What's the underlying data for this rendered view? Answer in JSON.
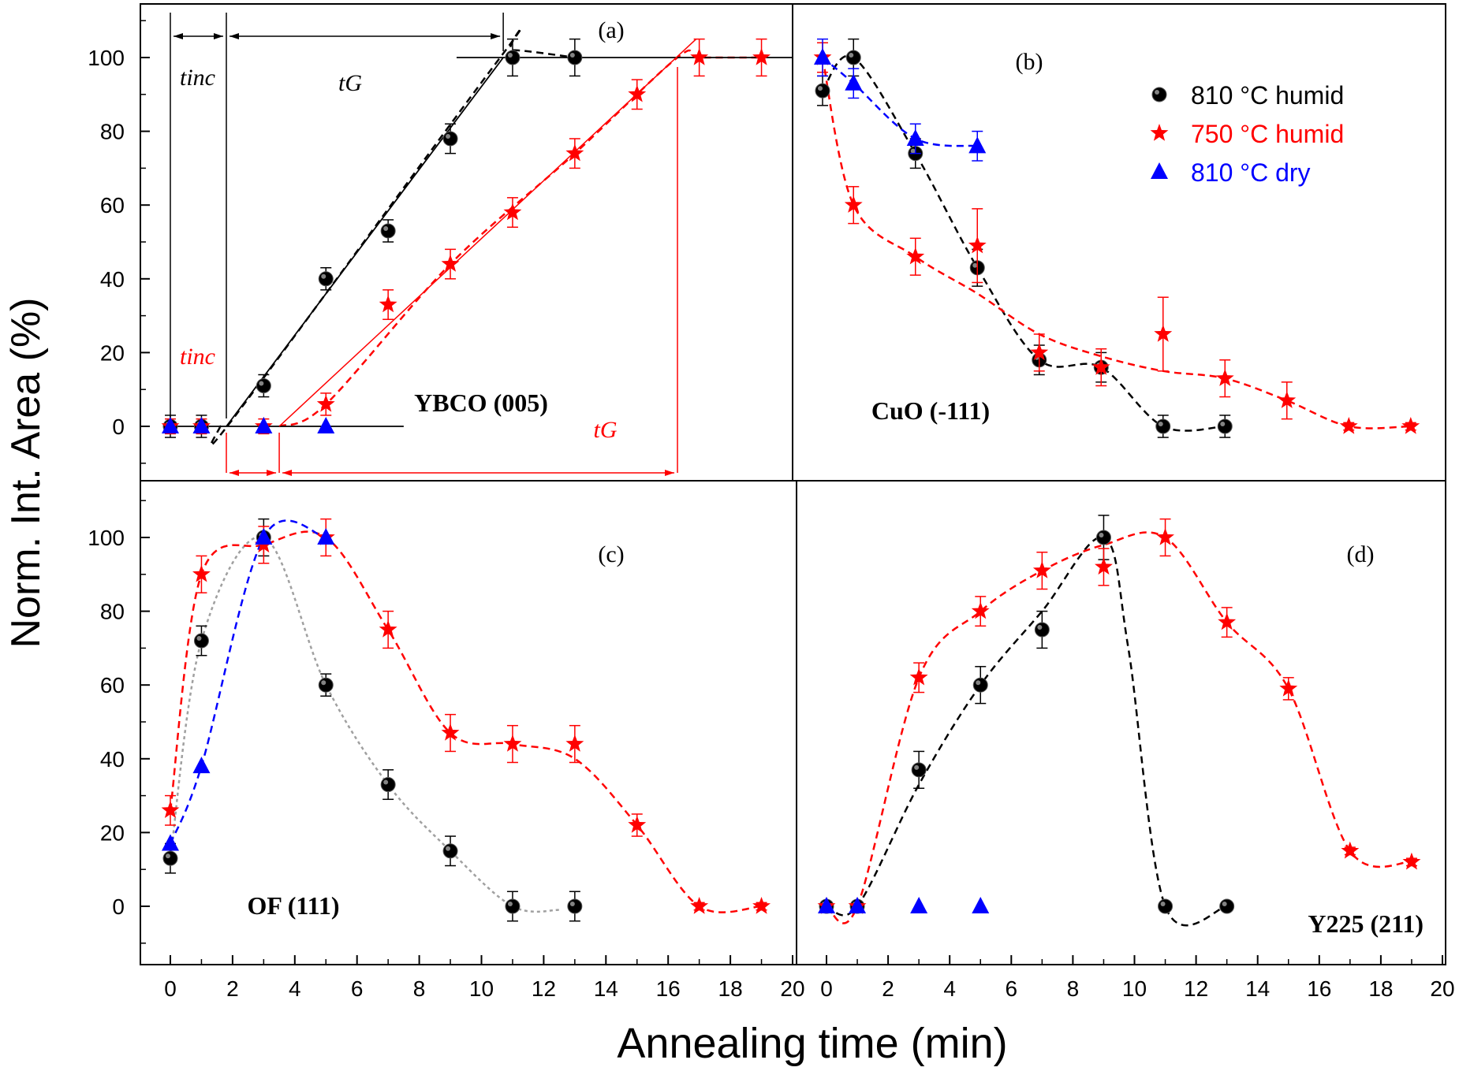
{
  "figure": {
    "ylabel": "Norm. Int. Area (%)",
    "xlabel": "Annealing time (min)",
    "legend": [
      {
        "label": "810 °C humid",
        "color": "#000000",
        "marker": "circle"
      },
      {
        "label": "750 °C humid",
        "color": "#ff0000",
        "marker": "star"
      },
      {
        "label": "810 °C dry",
        "color": "#0000ff",
        "marker": "triangle"
      }
    ],
    "annotations": {
      "tinc_black": "tinc",
      "tG_black": "tG",
      "tinc_red": "tinc",
      "tG_red": "tG"
    }
  },
  "chart_data": [
    {
      "type": "scatter",
      "panel": "(a)",
      "phase_label": "YBCO (005)",
      "xlim": [
        0,
        20
      ],
      "ylim": [
        -15,
        115
      ],
      "xticks": [
        0,
        2,
        4,
        6,
        8,
        10,
        12,
        14,
        16,
        18,
        20
      ],
      "yticks": [
        0,
        20,
        40,
        60,
        80,
        100
      ],
      "series": [
        {
          "color": "#000000",
          "marker": "circle",
          "x": [
            0,
            1,
            3,
            5,
            7,
            9,
            11,
            13
          ],
          "y": [
            0,
            0,
            11,
            40,
            53,
            78,
            100,
            100
          ],
          "err": [
            3,
            3,
            3,
            3,
            3,
            4,
            5,
            5
          ]
        },
        {
          "color": "#ff0000",
          "marker": "star",
          "x": [
            0,
            1,
            3,
            5,
            7,
            9,
            11,
            13,
            15,
            17,
            19
          ],
          "y": [
            0,
            0,
            0,
            6,
            33,
            44,
            58,
            74,
            90,
            100,
            100
          ],
          "err": [
            2,
            2,
            2,
            3,
            4,
            4,
            4,
            4,
            4,
            5,
            5
          ]
        },
        {
          "color": "#0000ff",
          "marker": "triangle",
          "x": [
            0,
            1,
            3,
            5
          ],
          "y": [
            0,
            0,
            0,
            0
          ],
          "err": [
            0,
            0,
            0,
            0
          ]
        }
      ],
      "fits": [
        {
          "color": "#000000",
          "x": [
            1.6,
            2.1,
            10.6,
            11,
            13
          ],
          "y": [
            0,
            3,
            100,
            102,
            100
          ]
        },
        {
          "color": "#ff0000",
          "x": [
            3.5,
            5,
            9,
            13,
            16.3,
            17,
            19
          ],
          "y": [
            0,
            6,
            44,
            74,
            100,
            100,
            100
          ]
        }
      ],
      "guide_lines": {
        "black_tinc_x": 1.8,
        "black_end_x": 10.7,
        "red_start_x": 3.5,
        "red_end_x": 16.3
      }
    },
    {
      "type": "scatter",
      "panel": "(b)",
      "phase_label": "CuO (-111)",
      "xlim": [
        0,
        20
      ],
      "ylim": [
        -15,
        115
      ],
      "xticks": [
        0,
        2,
        4,
        6,
        8,
        10,
        12,
        14,
        16,
        18,
        20
      ],
      "yticks": [
        0,
        20,
        40,
        60,
        80,
        100
      ],
      "series": [
        {
          "color": "#000000",
          "marker": "circle",
          "x": [
            0,
            1,
            3,
            5,
            7,
            9,
            11,
            13
          ],
          "y": [
            91,
            100,
            74,
            43,
            18,
            16,
            0,
            0
          ],
          "err": [
            4,
            5,
            4,
            5,
            4,
            4,
            3,
            3
          ]
        },
        {
          "color": "#ff0000",
          "marker": "star",
          "x": [
            0,
            1,
            3,
            5,
            7,
            9,
            11,
            13,
            15,
            17,
            19
          ],
          "y": [
            100,
            60,
            46,
            49,
            20,
            16,
            25,
            13,
            7,
            0,
            0
          ],
          "err": [
            4,
            5,
            5,
            10,
            5,
            5,
            10,
            5,
            5,
            1,
            1
          ]
        },
        {
          "color": "#0000ff",
          "marker": "triangle",
          "x": [
            0,
            1,
            3,
            5
          ],
          "y": [
            100,
            93,
            78,
            76
          ],
          "err": [
            5,
            4,
            4,
            4
          ]
        }
      ],
      "fits": [
        {
          "color": "#000000",
          "x": [
            0,
            1,
            3,
            5,
            7,
            9,
            11,
            13
          ],
          "y": [
            91,
            100,
            74,
            43,
            18,
            16,
            0,
            0
          ]
        },
        {
          "color": "#ff0000",
          "x": [
            0,
            1,
            3,
            5,
            7,
            9,
            11,
            13,
            15,
            17,
            19
          ],
          "y": [
            100,
            60,
            46,
            36,
            25,
            19,
            15,
            13,
            7,
            0,
            0
          ]
        },
        {
          "color": "#0000ff",
          "x": [
            0,
            1,
            3,
            5
          ],
          "y": [
            100,
            93,
            78,
            76
          ]
        }
      ]
    },
    {
      "type": "scatter",
      "panel": "(c)",
      "phase_label": "OF (111)",
      "xlim": [
        0,
        20
      ],
      "ylim": [
        -15,
        115
      ],
      "xticks": [
        0,
        2,
        4,
        6,
        8,
        10,
        12,
        14,
        16,
        18,
        20
      ],
      "yticks": [
        0,
        20,
        40,
        60,
        80,
        100
      ],
      "series": [
        {
          "color": "#000000",
          "marker": "circle",
          "x": [
            0,
            1,
            3,
            5,
            7,
            9,
            11,
            13
          ],
          "y": [
            13,
            72,
            100,
            60,
            33,
            15,
            0,
            0
          ],
          "err": [
            4,
            4,
            5,
            3,
            4,
            4,
            4,
            4
          ]
        },
        {
          "color": "#ff0000",
          "marker": "star",
          "x": [
            0,
            1,
            3,
            5,
            7,
            9,
            11,
            13,
            15,
            17,
            19
          ],
          "y": [
            26,
            90,
            98,
            100,
            75,
            47,
            44,
            44,
            22,
            0,
            0
          ],
          "err": [
            4,
            5,
            5,
            5,
            5,
            5,
            5,
            5,
            3,
            1,
            1
          ]
        },
        {
          "color": "#0000ff",
          "marker": "triangle",
          "x": [
            0,
            1,
            3,
            5
          ],
          "y": [
            17,
            38,
            100,
            100
          ],
          "err": [
            0,
            0,
            0,
            0
          ]
        }
      ],
      "fits": [
        {
          "color": "#a0a0a0",
          "x": [
            0,
            1,
            3,
            5,
            7,
            9,
            11,
            12.5
          ],
          "y": [
            13,
            72,
            100,
            60,
            33,
            15,
            0,
            -1
          ]
        },
        {
          "color": "#ff0000",
          "x": [
            0,
            1,
            3,
            5,
            7,
            9,
            11,
            13,
            15,
            17,
            19
          ],
          "y": [
            26,
            90,
            98,
            100,
            75,
            47,
            44,
            40,
            22,
            0,
            0
          ]
        },
        {
          "color": "#0000ff",
          "x": [
            0,
            1,
            3,
            5
          ],
          "y": [
            17,
            38,
            100,
            100
          ]
        }
      ]
    },
    {
      "type": "scatter",
      "panel": "(d)",
      "phase_label": "Y225 (211)",
      "xlim": [
        0,
        20
      ],
      "ylim": [
        -15,
        115
      ],
      "xticks": [
        0,
        2,
        4,
        6,
        8,
        10,
        12,
        14,
        16,
        18,
        20
      ],
      "yticks": [
        0,
        20,
        40,
        60,
        80,
        100
      ],
      "series": [
        {
          "color": "#000000",
          "marker": "circle",
          "x": [
            0,
            1,
            3,
            5,
            7,
            9,
            11,
            13
          ],
          "y": [
            0,
            0,
            37,
            60,
            75,
            100,
            0,
            0
          ],
          "err": [
            0,
            0,
            5,
            5,
            5,
            6,
            0,
            0
          ]
        },
        {
          "color": "#ff0000",
          "marker": "star",
          "x": [
            0,
            1,
            3,
            5,
            7,
            9,
            11,
            13,
            15,
            17,
            19
          ],
          "y": [
            0,
            0,
            62,
            80,
            91,
            92,
            100,
            77,
            59,
            15,
            12
          ],
          "err": [
            0,
            0,
            4,
            4,
            5,
            5,
            5,
            4,
            3,
            1,
            1
          ]
        },
        {
          "color": "#0000ff",
          "marker": "triangle",
          "x": [
            0,
            1,
            3,
            5
          ],
          "y": [
            0,
            0,
            0,
            0
          ],
          "err": [
            0,
            0,
            0,
            0
          ]
        }
      ],
      "fits": [
        {
          "color": "#000000",
          "x": [
            0,
            1,
            3,
            5,
            7,
            9,
            9.8,
            11,
            13
          ],
          "y": [
            0,
            0,
            33,
            60,
            80,
            100,
            70,
            0,
            0
          ]
        },
        {
          "color": "#ff0000",
          "x": [
            0,
            1,
            3,
            5,
            7,
            9,
            11,
            13,
            15,
            17,
            19
          ],
          "y": [
            0,
            0,
            62,
            80,
            91,
            98,
            100,
            77,
            59,
            15,
            12
          ]
        }
      ]
    }
  ]
}
